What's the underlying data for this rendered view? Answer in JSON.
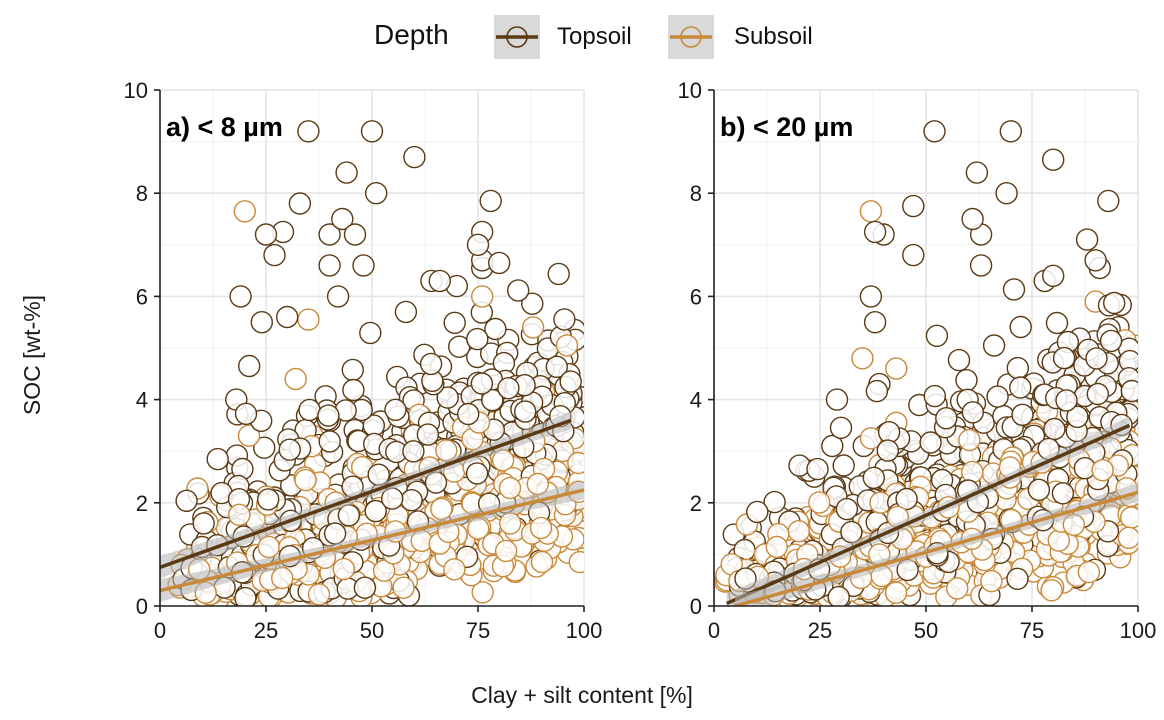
{
  "legend": {
    "title": "Depth",
    "entries": [
      {
        "label": "Topsoil",
        "color": "#5a3a14"
      },
      {
        "label": "Subsoil",
        "color": "#c8893a"
      }
    ]
  },
  "axes": {
    "xlabel": "Clay + silt content [%]",
    "ylabel": "SOC [wt-%]"
  },
  "chart_data": [
    {
      "type": "scatter",
      "title": "a) < 8 µm",
      "xlabel": "Clay + silt content [%]",
      "ylabel": "SOC [wt-%]",
      "xlim": [
        0,
        100
      ],
      "ylim": [
        0,
        10
      ],
      "xticks": [
        0,
        25,
        50,
        75,
        100
      ],
      "yticks": [
        0,
        2,
        4,
        6,
        8,
        10
      ],
      "grid": true,
      "legend_position": "top",
      "series": [
        {
          "name": "Topsoil",
          "color": "#5a3a14",
          "trend": {
            "x": [
              0,
              97
            ],
            "y": [
              0.75,
              3.6
            ]
          },
          "highlight_points": [
            [
              35,
              9.2
            ],
            [
              50,
              9.2
            ],
            [
              60,
              8.7
            ],
            [
              44,
              8.4
            ],
            [
              51,
              8.0
            ],
            [
              78,
              7.85
            ],
            [
              33,
              7.8
            ],
            [
              43,
              7.5
            ],
            [
              40,
              7.2
            ],
            [
              46,
              7.2
            ],
            [
              25,
              7.2
            ],
            [
              29,
              7.25
            ],
            [
              76,
              7.25
            ],
            [
              75,
              7.0
            ],
            [
              27,
              6.8
            ],
            [
              76,
              6.7
            ],
            [
              80,
              6.65
            ],
            [
              40,
              6.6
            ],
            [
              48,
              6.6
            ],
            [
              76,
              6.55
            ],
            [
              19,
              6.0
            ],
            [
              18,
              4.0
            ],
            [
              99,
              4.05
            ],
            [
              42,
              6.0
            ],
            [
              30,
              5.6
            ],
            [
              24,
              5.5
            ],
            [
              58,
              5.7
            ],
            [
              64,
              6.3
            ],
            [
              66,
              6.3
            ],
            [
              70,
              6.2
            ]
          ],
          "bulk": {
            "x_range": [
              3,
              98
            ],
            "y_center_at_x0": 0.75,
            "y_center_at_x100": 3.6,
            "spread": 2.3,
            "count": 520
          }
        },
        {
          "name": "Subsoil",
          "color": "#c8893a",
          "trend": {
            "x": [
              0,
              100
            ],
            "y": [
              0.3,
              2.25
            ]
          },
          "highlight_points": [
            [
              20,
              7.65
            ],
            [
              76,
              6.0
            ],
            [
              88,
              5.4
            ],
            [
              96,
              5.05
            ],
            [
              35,
              5.55
            ],
            [
              32,
              4.4
            ],
            [
              21,
              3.3
            ],
            [
              36,
              3.3
            ],
            [
              99,
              0.85
            ]
          ],
          "bulk": {
            "x_range": [
              2,
              99
            ],
            "y_center_at_x0": 0.3,
            "y_center_at_x100": 2.25,
            "spread": 1.4,
            "count": 520
          }
        }
      ]
    },
    {
      "type": "scatter",
      "title": "b) < 20 µm",
      "xlabel": "Clay + silt content [%]",
      "ylabel": "SOC [wt-%]",
      "xlim": [
        0,
        100
      ],
      "ylim": [
        0,
        10
      ],
      "xticks": [
        0,
        25,
        50,
        75,
        100
      ],
      "yticks": [
        0,
        2,
        4,
        6,
        8,
        10
      ],
      "grid": true,
      "legend_position": "top",
      "series": [
        {
          "name": "Topsoil",
          "color": "#5a3a14",
          "trend": {
            "x": [
              3,
              98
            ],
            "y": [
              0.05,
              3.5
            ]
          },
          "highlight_points": [
            [
              52,
              9.2
            ],
            [
              70,
              9.2
            ],
            [
              80,
              8.65
            ],
            [
              62,
              8.4
            ],
            [
              69,
              8.0
            ],
            [
              47,
              7.75
            ],
            [
              93,
              7.85
            ],
            [
              38,
              7.25
            ],
            [
              40,
              7.2
            ],
            [
              61,
              7.5
            ],
            [
              88,
              7.1
            ],
            [
              63,
              7.2
            ],
            [
              47,
              6.8
            ],
            [
              90,
              6.7
            ],
            [
              91,
              6.55
            ],
            [
              63,
              6.6
            ],
            [
              37,
              6.0
            ],
            [
              38,
              5.5
            ],
            [
              29,
              4.0
            ],
            [
              39,
              4.3
            ],
            [
              78,
              6.3
            ],
            [
              80,
              6.4
            ]
          ],
          "bulk": {
            "x_range": [
              3,
              99
            ],
            "y_center_at_x0": 0.05,
            "y_center_at_x100": 3.5,
            "spread": 2.2,
            "count": 560
          }
        },
        {
          "name": "Subsoil",
          "color": "#c8893a",
          "trend": {
            "x": [
              5,
              100
            ],
            "y": [
              0.0,
              2.2
            ]
          },
          "highlight_points": [
            [
              37,
              7.65
            ],
            [
              37,
              3.25
            ],
            [
              43,
              3.55
            ],
            [
              43,
              4.6
            ],
            [
              35,
              4.8
            ],
            [
              90,
              5.9
            ],
            [
              99,
              5.05
            ],
            [
              97,
              5.15
            ],
            [
              3,
              0.5
            ],
            [
              12,
              1.0
            ],
            [
              20,
              1.45
            ],
            [
              25,
              1.6
            ]
          ],
          "bulk": {
            "x_range": [
              2,
              99
            ],
            "y_center_at_x0": 0.0,
            "y_center_at_x100": 2.2,
            "spread": 1.5,
            "count": 560
          }
        }
      ]
    }
  ]
}
